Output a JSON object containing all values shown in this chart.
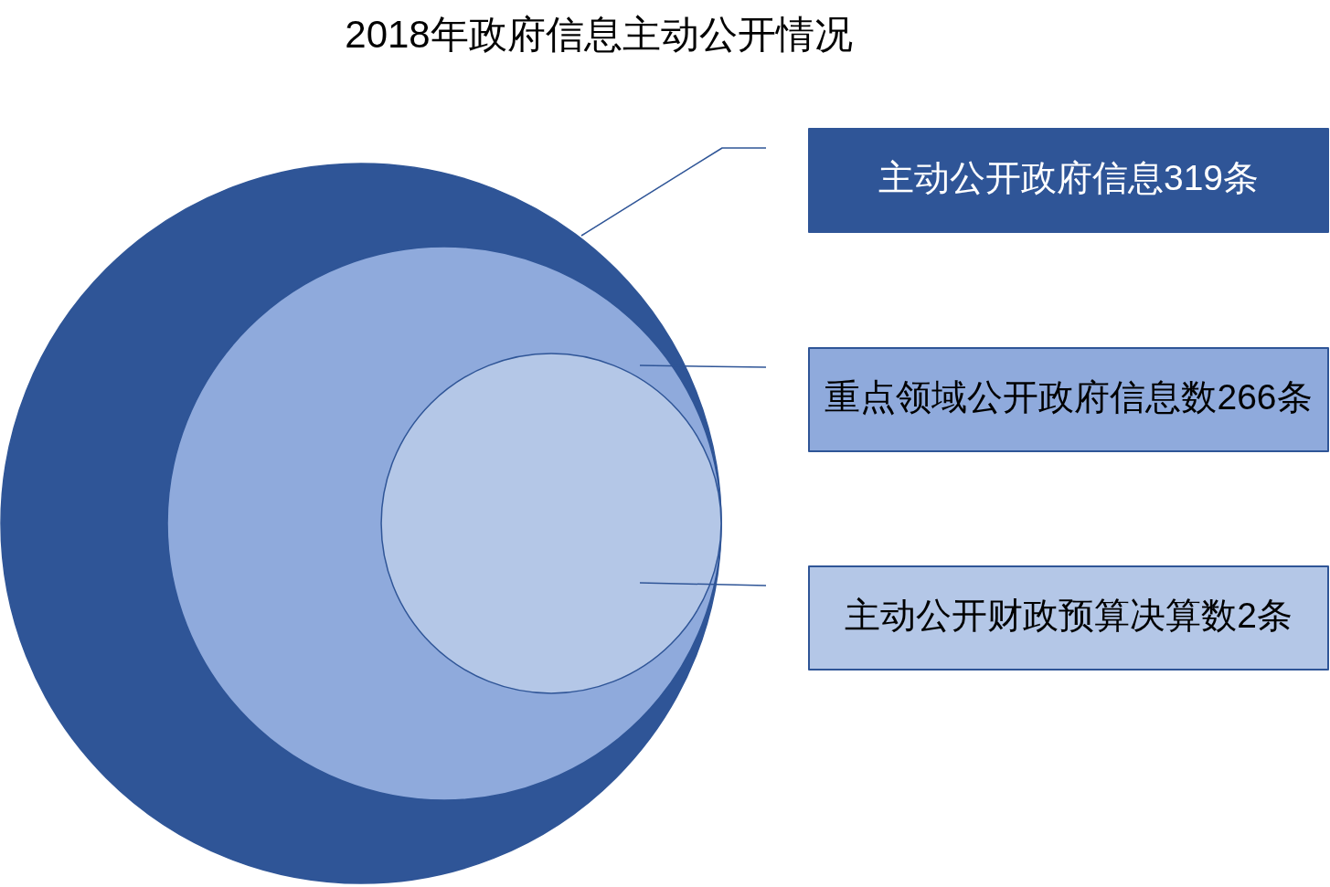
{
  "chart_data": {
    "type": "other",
    "title": "2018年政府信息主动公开情况",
    "categories": [
      "主动公开政府信息",
      "重点领域公开政府信息数",
      "主动公开财政预算决算数"
    ],
    "values": [
      319,
      266,
      2
    ],
    "value_labels": [
      "319条",
      "266条",
      "2条"
    ],
    "colors": [
      "#2f5597",
      "#8faadc",
      "#b4c7e7"
    ]
  }
}
